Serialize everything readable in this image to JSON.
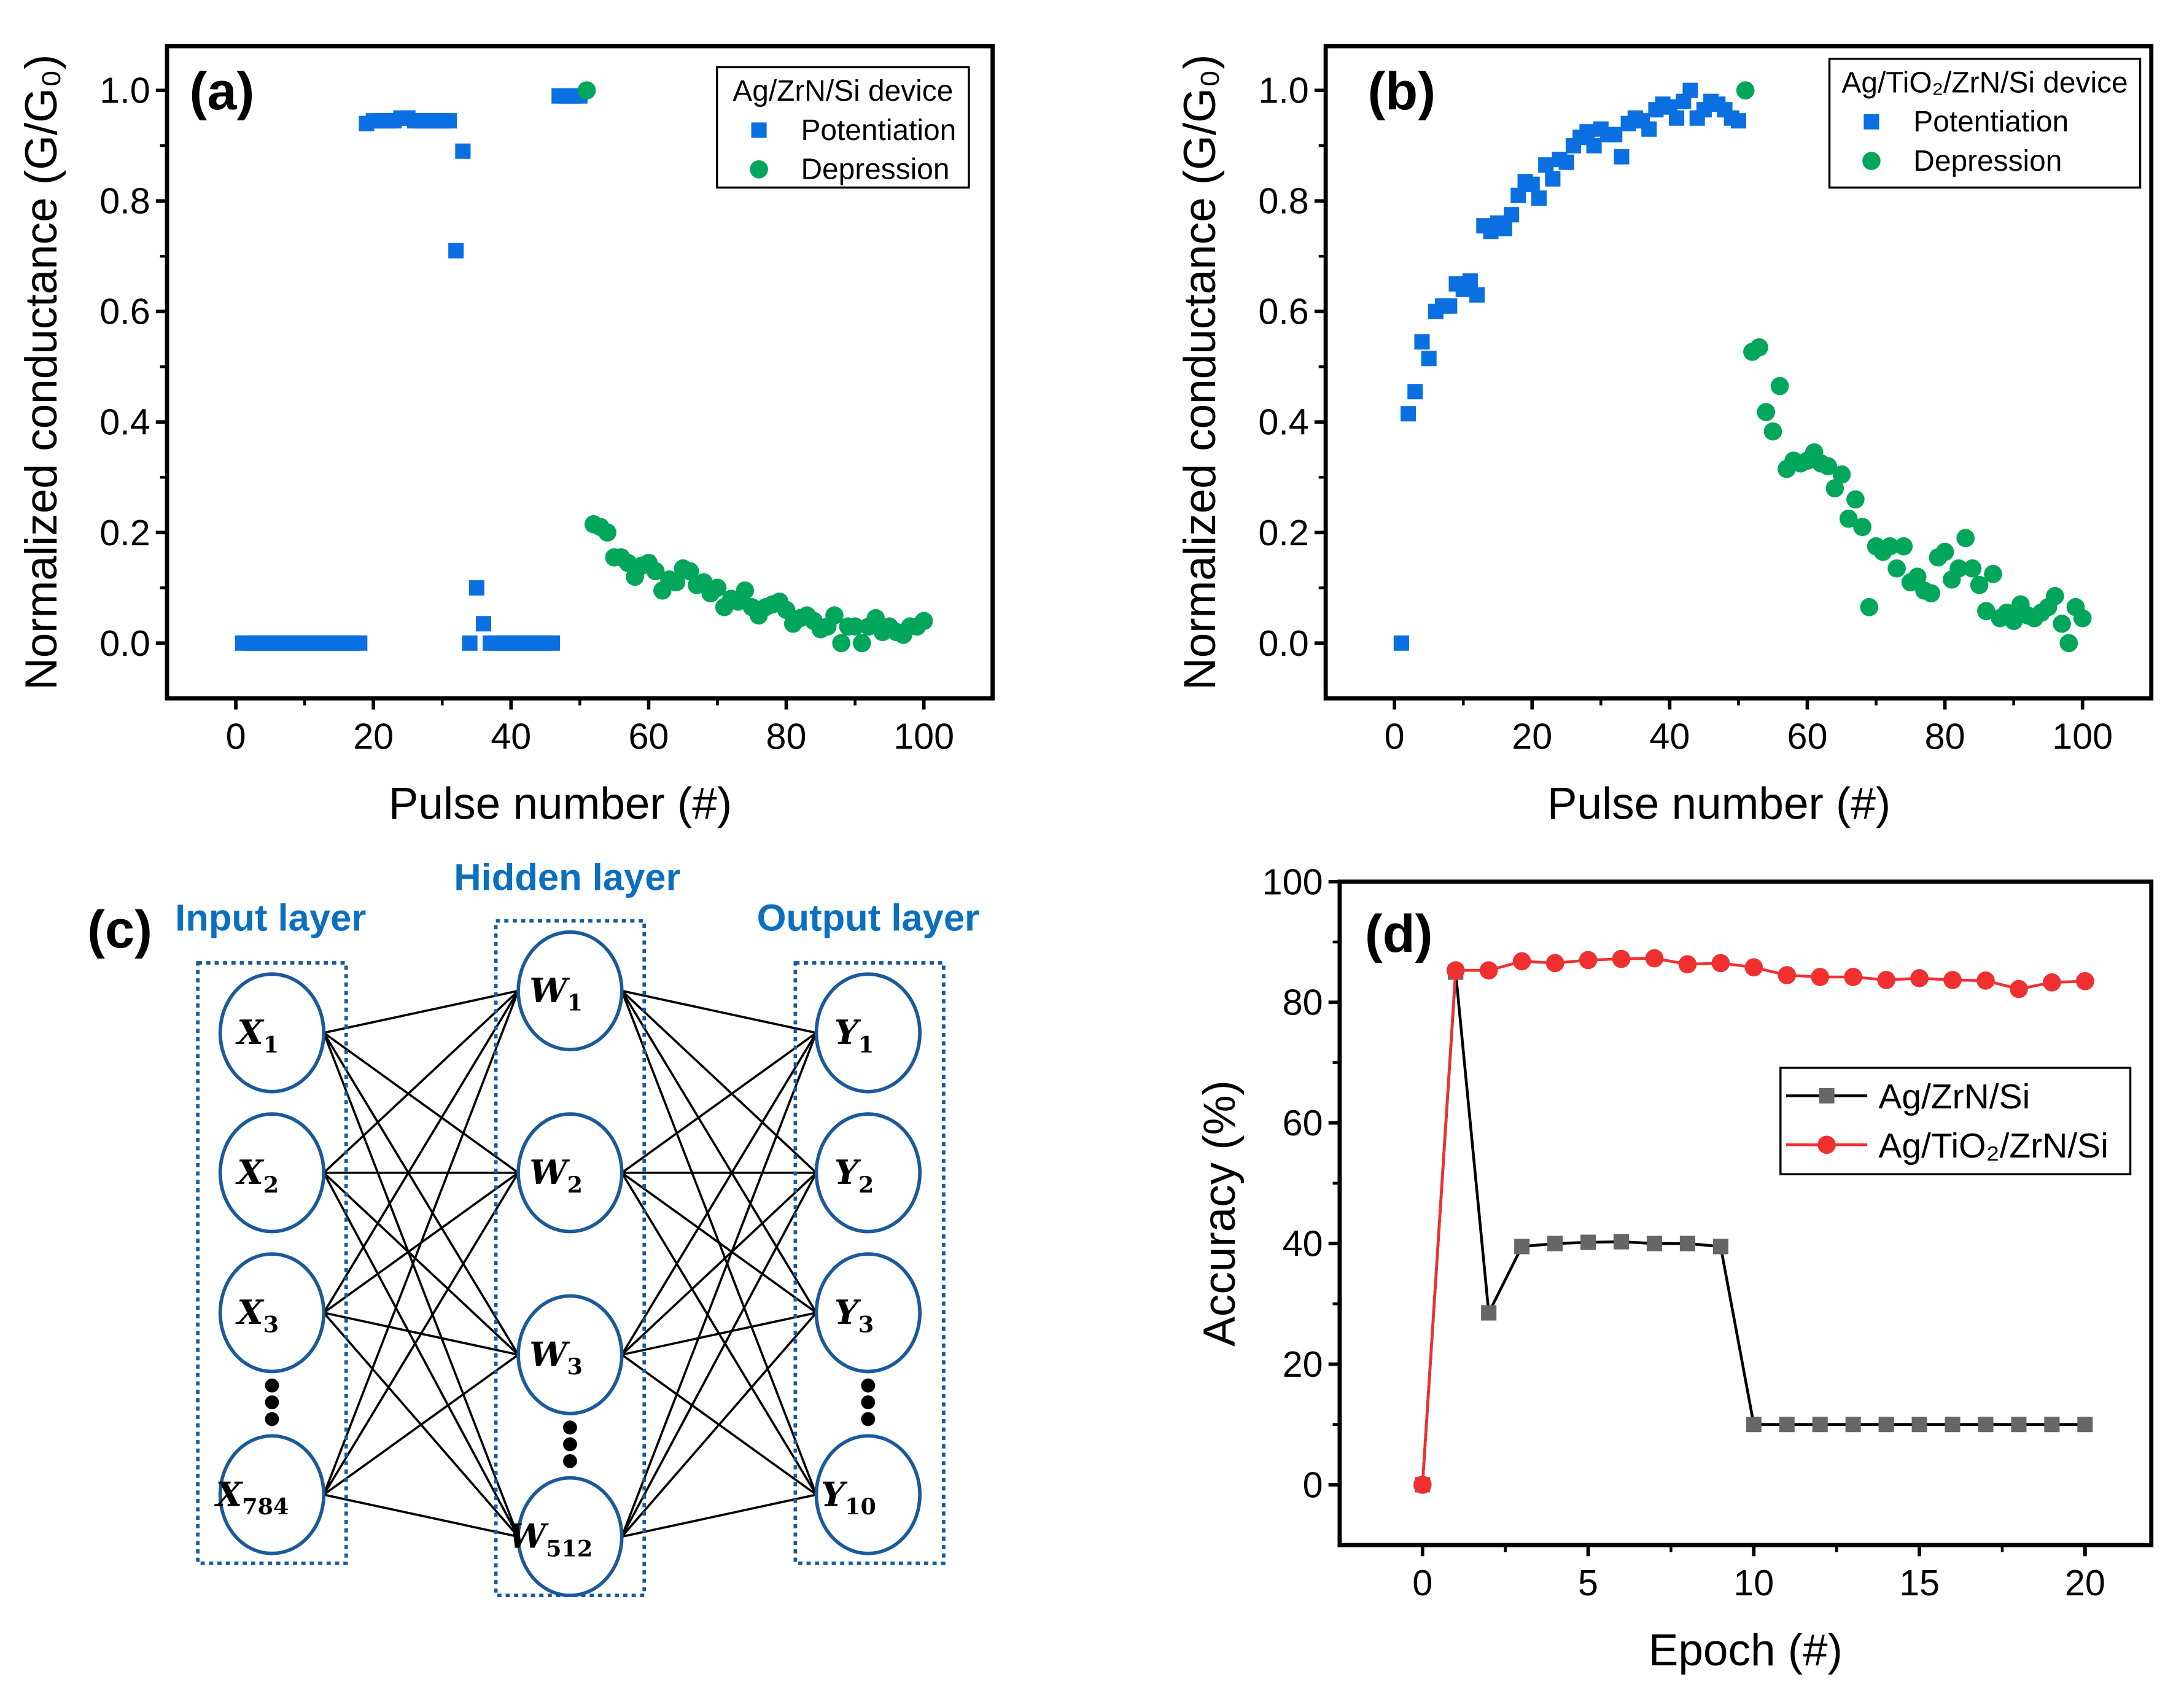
{
  "chart_data": [
    {
      "id": "a",
      "type": "scatter",
      "panel_label": "(a)",
      "xlabel": "Pulse number (#)",
      "ylabel": "Normalized conductance (G/G₀)",
      "xlim": [
        -10,
        110
      ],
      "ylim": [
        -0.1,
        1.08
      ],
      "xticks": [
        0,
        20,
        40,
        60,
        80,
        100
      ],
      "xtick_labels": [
        "0",
        "20",
        "40",
        "60",
        "80",
        "100"
      ],
      "yticks": [
        0,
        0.2,
        0.4,
        0.6,
        0.8,
        1.0
      ],
      "ytick_labels": [
        "0.0",
        "0.2",
        "0.4",
        "0.6",
        "0.8",
        "1.0"
      ],
      "legend_title": "Ag/ZrN/Si device",
      "legend_position": "top-right",
      "series": [
        {
          "name": "Potentiation",
          "marker": "square",
          "color": "#0a6fe0",
          "x": [
            1,
            2,
            3,
            4,
            5,
            6,
            7,
            8,
            9,
            10,
            11,
            12,
            13,
            14,
            15,
            16,
            17,
            18,
            19,
            20,
            21,
            22,
            23,
            24,
            25,
            26,
            27,
            28,
            29,
            30,
            31,
            32,
            33,
            34,
            35,
            36,
            37,
            38,
            39,
            40,
            41,
            42,
            43,
            44,
            45,
            46,
            47,
            48,
            49,
            50
          ],
          "y": [
            0,
            0,
            0,
            0,
            0,
            0,
            0,
            0,
            0,
            0,
            0,
            0,
            0,
            0,
            0,
            0,
            0,
            0,
            0.94,
            0.945,
            0.945,
            0.945,
            0.945,
            0.95,
            0.95,
            0.945,
            0.945,
            0.945,
            0.945,
            0.945,
            0.945,
            0.71,
            0.89,
            0,
            0.1,
            0.035,
            0,
            0,
            0,
            0,
            0,
            0,
            0,
            0,
            0,
            0,
            0.99,
            0.99,
            0.99,
            0.99
          ]
        },
        {
          "name": "Depression",
          "marker": "circle",
          "color": "#00a65a",
          "x": [
            51,
            52,
            53,
            54,
            55,
            56,
            57,
            58,
            59,
            60,
            61,
            62,
            63,
            64,
            65,
            66,
            67,
            68,
            69,
            70,
            71,
            72,
            73,
            74,
            75,
            76,
            77,
            78,
            79,
            80,
            81,
            82,
            83,
            84,
            85,
            86,
            87,
            88,
            89,
            90,
            91,
            92,
            93,
            94,
            95,
            96,
            97,
            98,
            99,
            100
          ],
          "y": [
            1.0,
            0.215,
            0.21,
            0.2,
            0.155,
            0.155,
            0.145,
            0.12,
            0.14,
            0.145,
            0.13,
            0.095,
            0.115,
            0.11,
            0.135,
            0.13,
            0.105,
            0.11,
            0.09,
            0.1,
            0.065,
            0.08,
            0.075,
            0.095,
            0.065,
            0.05,
            0.065,
            0.07,
            0.075,
            0.06,
            0.035,
            0.045,
            0.05,
            0.04,
            0.025,
            0.03,
            0.05,
            0.0,
            0.03,
            0.03,
            0.0,
            0.03,
            0.045,
            0.02,
            0.03,
            0.02,
            0.015,
            0.03,
            0.03,
            0.04
          ]
        }
      ]
    },
    {
      "id": "b",
      "type": "scatter",
      "panel_label": "(b)",
      "xlabel": "Pulse number (#)",
      "ylabel": "Normalized conductance (G/G₀)",
      "xlim": [
        -10,
        110
      ],
      "ylim": [
        -0.1,
        1.08
      ],
      "xticks": [
        0,
        20,
        40,
        60,
        80,
        100
      ],
      "xtick_labels": [
        "0",
        "20",
        "40",
        "60",
        "80",
        "100"
      ],
      "yticks": [
        0,
        0.2,
        0.4,
        0.6,
        0.8,
        1.0
      ],
      "ytick_labels": [
        "0.0",
        "0.2",
        "0.4",
        "0.6",
        "0.8",
        "1.0"
      ],
      "legend_title": "Ag/TiO₂/ZrN/Si device",
      "legend_position": "top-right",
      "series": [
        {
          "name": "Potentiation",
          "marker": "square",
          "color": "#0a6fe0",
          "x": [
            1,
            2,
            3,
            4,
            5,
            6,
            7,
            8,
            9,
            10,
            11,
            12,
            13,
            14,
            15,
            16,
            17,
            18,
            19,
            20,
            21,
            22,
            23,
            24,
            25,
            26,
            27,
            28,
            29,
            30,
            31,
            32,
            33,
            34,
            35,
            36,
            37,
            38,
            39,
            40,
            41,
            42,
            43,
            44,
            45,
            46,
            47,
            48,
            49,
            50
          ],
          "y": [
            0,
            0.415,
            0.455,
            0.545,
            0.515,
            0.6,
            0.61,
            0.61,
            0.65,
            0.64,
            0.655,
            0.63,
            0.755,
            0.745,
            0.76,
            0.75,
            0.775,
            0.81,
            0.835,
            0.83,
            0.805,
            0.865,
            0.84,
            0.875,
            0.87,
            0.9,
            0.915,
            0.925,
            0.9,
            0.93,
            0.92,
            0.92,
            0.88,
            0.94,
            0.95,
            0.945,
            0.93,
            0.965,
            0.975,
            0.97,
            0.95,
            0.98,
            1.0,
            0.95,
            0.965,
            0.98,
            0.975,
            0.965,
            0.95,
            0.945
          ]
        },
        {
          "name": "Depression",
          "marker": "circle",
          "color": "#00a65a",
          "x": [
            51,
            52,
            53,
            54,
            55,
            56,
            57,
            58,
            59,
            60,
            61,
            62,
            63,
            64,
            65,
            66,
            67,
            68,
            69,
            70,
            71,
            72,
            73,
            74,
            75,
            76,
            77,
            78,
            79,
            80,
            81,
            82,
            83,
            84,
            85,
            86,
            87,
            88,
            89,
            90,
            91,
            92,
            93,
            94,
            95,
            96,
            97,
            98,
            99,
            100
          ],
          "y": [
            1.0,
            0.527,
            0.535,
            0.418,
            0.383,
            0.465,
            0.315,
            0.33,
            0.325,
            0.33,
            0.345,
            0.325,
            0.32,
            0.28,
            0.305,
            0.225,
            0.26,
            0.21,
            0.065,
            0.175,
            0.165,
            0.175,
            0.135,
            0.175,
            0.11,
            0.12,
            0.095,
            0.09,
            0.155,
            0.165,
            0.115,
            0.135,
            0.19,
            0.135,
            0.105,
            0.058,
            0.125,
            0.045,
            0.055,
            0.04,
            0.07,
            0.05,
            0.045,
            0.055,
            0.065,
            0.085,
            0.035,
            0.0,
            0.065,
            0.045
          ]
        }
      ]
    },
    {
      "id": "d",
      "type": "line",
      "panel_label": "(d)",
      "xlabel": "Epoch (#)",
      "ylabel": "Accuracy (%)",
      "xlim": [
        -2.5,
        22
      ],
      "ylim": [
        -10,
        100
      ],
      "xticks": [
        0,
        5,
        10,
        15,
        20
      ],
      "xtick_labels": [
        "0",
        "5",
        "10",
        "15",
        "20"
      ],
      "yticks": [
        0,
        20,
        40,
        60,
        80,
        100
      ],
      "ytick_labels": [
        "0",
        "20",
        "40",
        "60",
        "80",
        "100"
      ],
      "legend_title": "",
      "legend_position": "center-right",
      "series": [
        {
          "name": "Ag/ZrN/Si",
          "marker": "square",
          "color": "#666666",
          "line_color": "#000000",
          "x": [
            0,
            1,
            2,
            3,
            4,
            5,
            6,
            7,
            8,
            9,
            10,
            11,
            12,
            13,
            14,
            15,
            16,
            17,
            18,
            19,
            20
          ],
          "y": [
            0,
            85,
            28.5,
            39.5,
            40,
            40.2,
            40.3,
            40,
            40,
            39.5,
            10,
            10,
            10,
            10,
            10,
            10,
            10,
            10,
            10,
            10,
            10
          ]
        },
        {
          "name": "Ag/TiO₂/ZrN/Si",
          "marker": "circle",
          "color": "#f03030",
          "line_color": "#f03030",
          "x": [
            0,
            1,
            2,
            3,
            4,
            5,
            6,
            7,
            8,
            9,
            10,
            11,
            12,
            13,
            14,
            15,
            16,
            17,
            18,
            19,
            20
          ],
          "y": [
            0,
            85.3,
            85.3,
            86.8,
            86.5,
            87,
            87.2,
            87.3,
            86.3,
            86.5,
            85.8,
            84.5,
            84.2,
            84.2,
            83.7,
            84,
            83.7,
            83.6,
            82.2,
            83.3,
            83.5
          ]
        }
      ]
    }
  ],
  "diagram": {
    "panel_label": "(c)",
    "input_layer": {
      "label": "Input layer",
      "nodes": [
        {
          "v": "X",
          "sub": "1"
        },
        {
          "v": "X",
          "sub": "2"
        },
        {
          "v": "X",
          "sub": "3"
        },
        {
          "v": "X",
          "sub": "784"
        }
      ]
    },
    "hidden_layer": {
      "label": "Hidden layer",
      "nodes": [
        {
          "v": "W",
          "sub": "1"
        },
        {
          "v": "W",
          "sub": "2"
        },
        {
          "v": "W",
          "sub": "3"
        },
        {
          "v": "W",
          "sub": "512"
        }
      ]
    },
    "output_layer": {
      "label": "Output layer",
      "nodes": [
        {
          "v": "Y",
          "sub": "1"
        },
        {
          "v": "Y",
          "sub": "2"
        },
        {
          "v": "Y",
          "sub": "3"
        },
        {
          "v": "Y",
          "sub": "10"
        }
      ]
    },
    "colors": {
      "label": "#0b6fc0",
      "node_stroke": "#1a5a9a",
      "box": "#1a5a9a"
    }
  }
}
